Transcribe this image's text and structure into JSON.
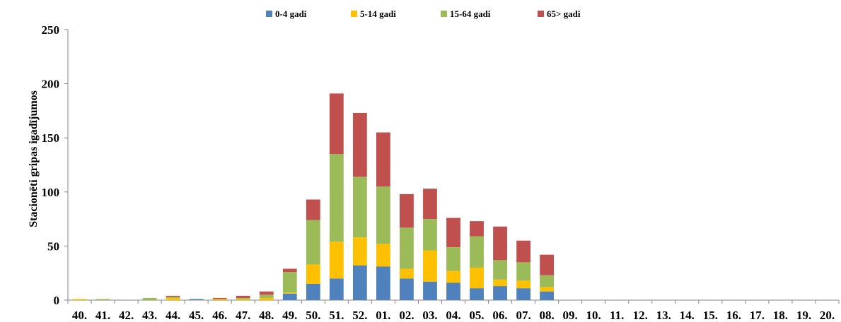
{
  "chart_data": {
    "type": "bar",
    "stacked": true,
    "title": "",
    "xlabel": "",
    "ylabel": "Stacionēti gripas igadījumos",
    "ylim": [
      0,
      250
    ],
    "yticks": [
      0,
      50,
      100,
      150,
      200,
      250
    ],
    "grid": false,
    "legend_position": "top",
    "categories": [
      "40.",
      "41.",
      "42.",
      "43.",
      "44.",
      "45.",
      "46.",
      "47.",
      "48.",
      "49.",
      "50.",
      "51.",
      "52.",
      "01.",
      "02.",
      "03.",
      "04.",
      "05.",
      "06.",
      "07.",
      "08.",
      "09.",
      "10.",
      "11.",
      "12.",
      "13.",
      "14.",
      "15.",
      "16.",
      "17.",
      "18.",
      "19.",
      "20."
    ],
    "series": [
      {
        "name": "0-4 gadi",
        "color": "#4f81bd",
        "values": [
          0,
          0,
          0,
          0,
          0,
          1,
          0,
          0,
          0,
          6,
          15,
          20,
          32,
          31,
          20,
          17,
          16,
          11,
          13,
          11,
          8,
          0,
          0,
          0,
          0,
          0,
          0,
          0,
          0,
          0,
          0,
          0,
          0
        ]
      },
      {
        "name": "5-14 gadi",
        "color": "#ffc000",
        "values": [
          1,
          0,
          0,
          0,
          2,
          0,
          1,
          1,
          2,
          1,
          18,
          34,
          26,
          21,
          9,
          29,
          11,
          19,
          6,
          7,
          4,
          0,
          0,
          0,
          0,
          0,
          0,
          0,
          0,
          0,
          0,
          0,
          0
        ]
      },
      {
        "name": "15-64 gadi",
        "color": "#9bbb59",
        "values": [
          0,
          1,
          0,
          2,
          1,
          0,
          0,
          1,
          3,
          19,
          41,
          81,
          56,
          53,
          38,
          29,
          22,
          29,
          18,
          17,
          11,
          0,
          0,
          0,
          0,
          0,
          0,
          0,
          0,
          0,
          0,
          0,
          0
        ]
      },
      {
        "name": "65> gadi",
        "color": "#c0504d",
        "values": [
          0,
          0,
          0,
          0,
          1,
          0,
          1,
          2,
          3,
          3,
          19,
          56,
          59,
          50,
          31,
          28,
          27,
          14,
          31,
          20,
          19,
          0,
          0,
          0,
          0,
          0,
          0,
          0,
          0,
          0,
          0,
          0,
          0
        ]
      }
    ]
  }
}
